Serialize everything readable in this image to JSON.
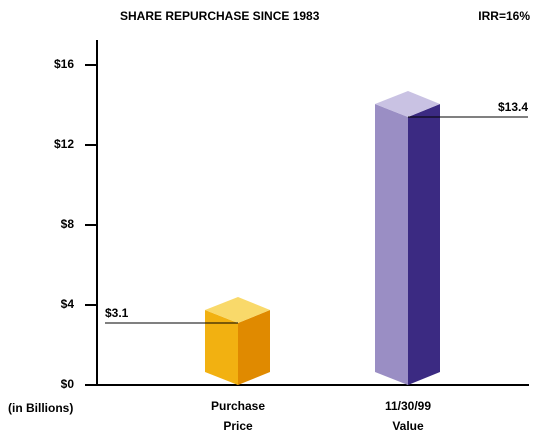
{
  "chart_data": {
    "type": "bar3d",
    "title": "SHARE REPURCHASE SINCE 1983",
    "annotation": "IRR=16%",
    "y_axis_label": "(in Billions)",
    "categories": [
      "Purchase Price",
      "11/30/99 Value"
    ],
    "values": [
      3.1,
      13.4
    ],
    "value_labels": [
      "$3.1",
      "$13.4"
    ],
    "colors": [
      {
        "left": "#f2b111",
        "right": "#e08a00",
        "top": "#f9d96a"
      },
      {
        "left": "#9a8ec4",
        "right": "#3b2a82",
        "top": "#c9c2e3"
      }
    ],
    "ylim": [
      0,
      16
    ],
    "yticks": [
      {
        "value": 0,
        "label": "$0"
      },
      {
        "value": 4,
        "label": "$4"
      },
      {
        "value": 8,
        "label": "$8"
      },
      {
        "value": 12,
        "label": "$12"
      },
      {
        "value": 16,
        "label": "$16"
      }
    ]
  }
}
